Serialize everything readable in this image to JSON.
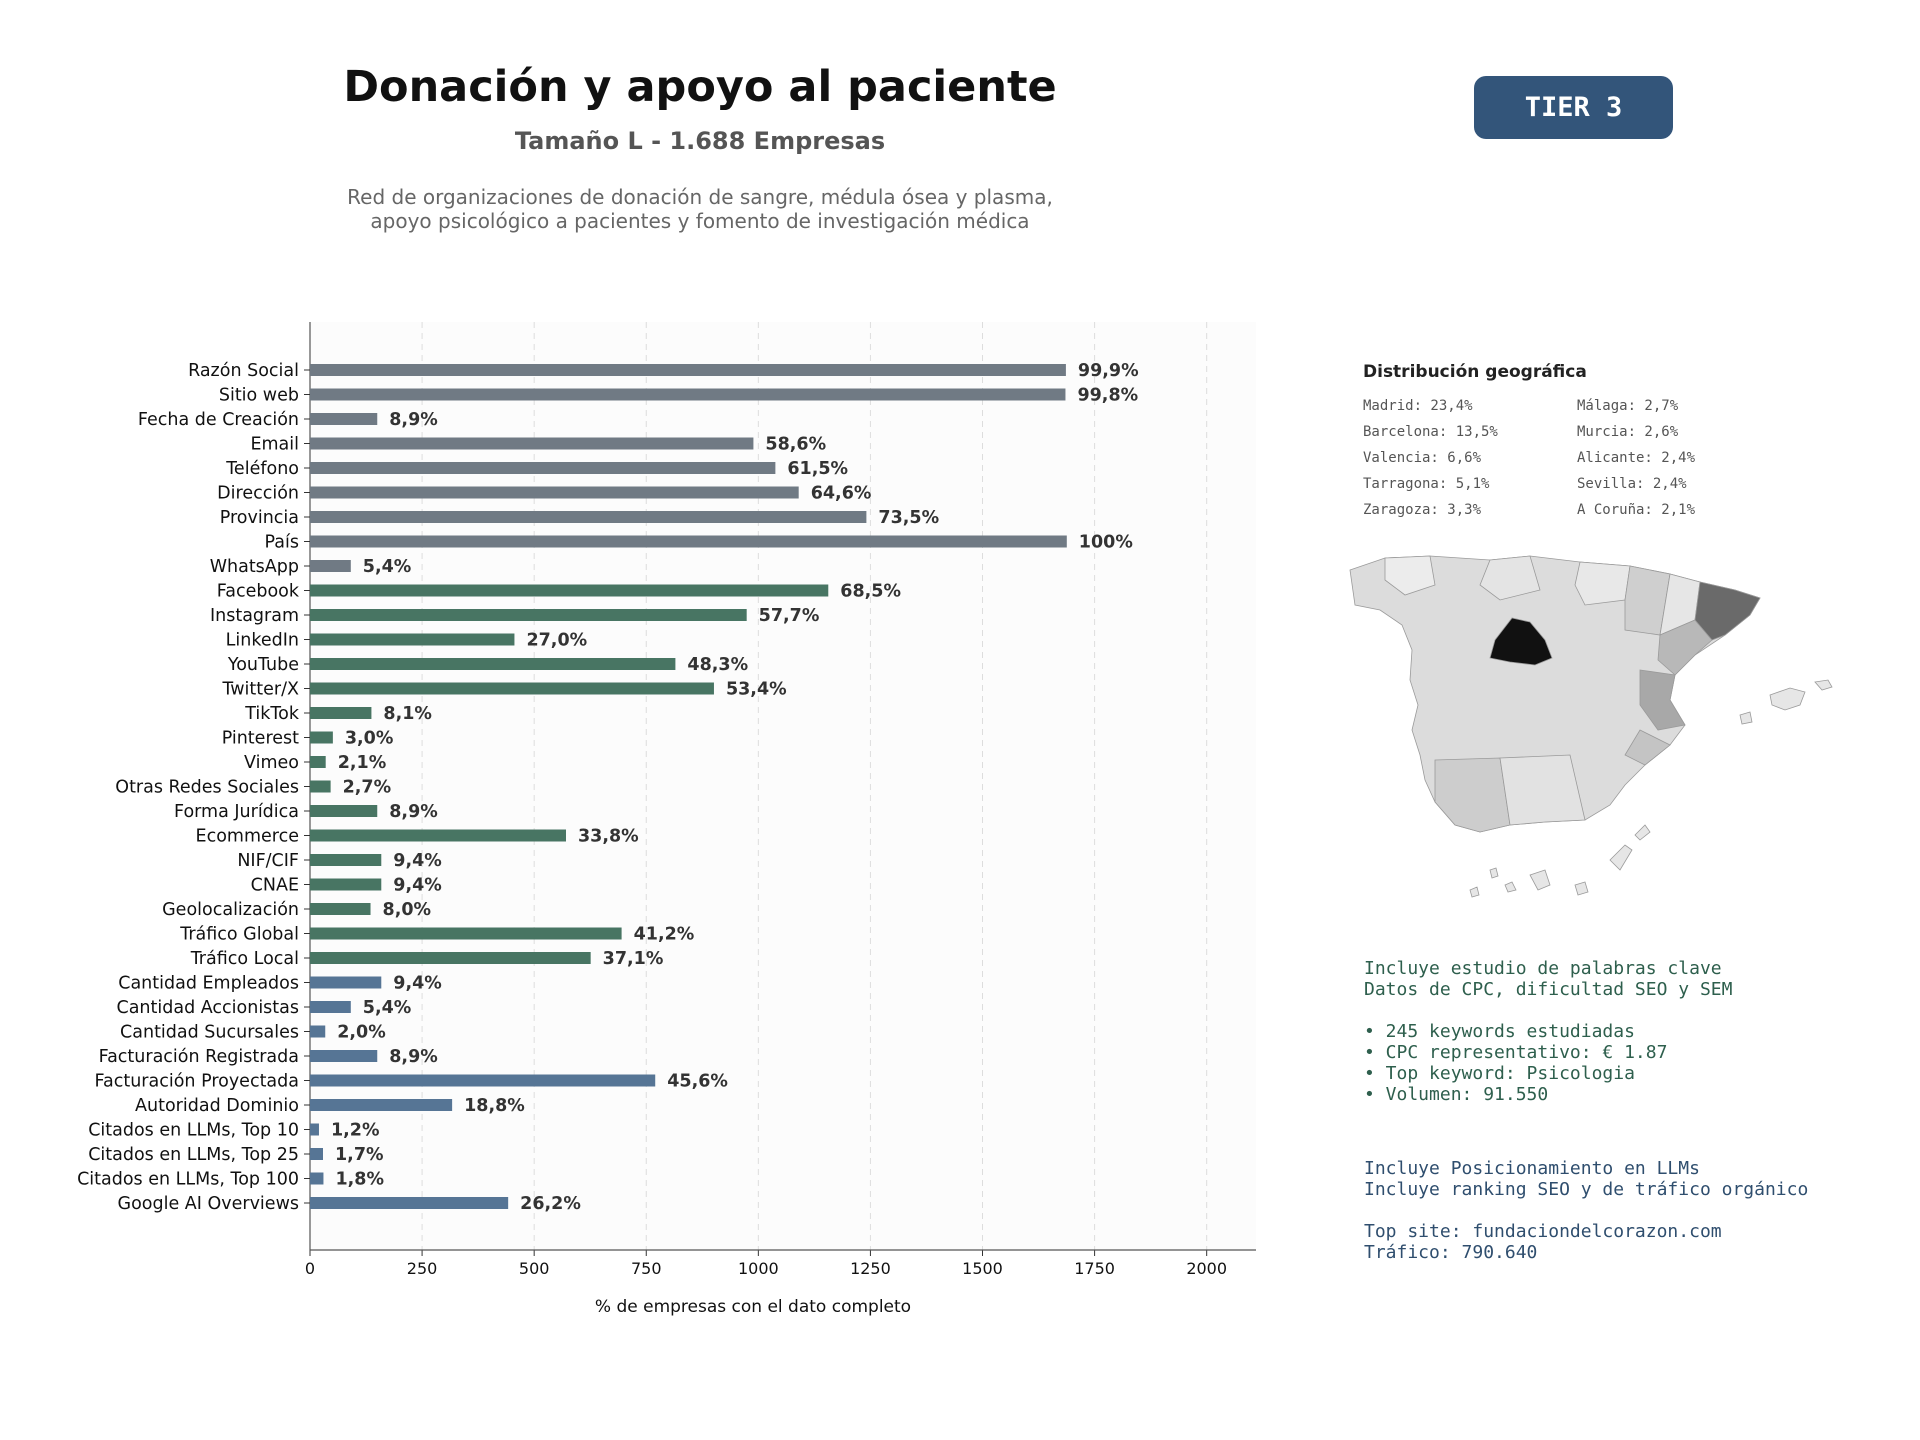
{
  "header": {
    "title": "Donación y apoyo al paciente",
    "subtitle": "Tamaño L - 1.688 Empresas",
    "description_lines": [
      "Red de organizaciones de donación de sangre, médula ósea y plasma,",
      "apoyo psicológico a pacientes y fomento de investigación médica"
    ],
    "tier_badge": "TIER 3"
  },
  "chart_data": {
    "type": "bar",
    "orientation": "horizontal",
    "xlabel": "% de empresas con el dato completo",
    "xlim": [
      0,
      2110
    ],
    "xticks": [
      0,
      250,
      500,
      750,
      1000,
      1250,
      1500,
      1750,
      2000
    ],
    "grid": "vertical-dashed",
    "total": 1688,
    "colors": {
      "contact": "#707a84",
      "social": "#487563",
      "business": "#567595"
    },
    "categories": [
      "Razón Social",
      "Sitio web",
      "Fecha de Creación",
      "Email",
      "Teléfono",
      "Dirección",
      "Provincia",
      "País",
      "WhatsApp",
      "Facebook",
      "Instagram",
      "LinkedIn",
      "YouTube",
      "Twitter/X",
      "TikTok",
      "Pinterest",
      "Vimeo",
      "Otras Redes Sociales",
      "Forma Jurídica",
      "Ecommerce",
      "NIF/CIF",
      "CNAE",
      "Geolocalización",
      "Tráfico Global",
      "Tráfico Local",
      "Cantidad Empleados",
      "Cantidad Accionistas",
      "Cantidad Sucursales",
      "Facturación Registrada",
      "Facturación Proyectada",
      "Autoridad Dominio",
      "Citados en LLMs, Top 10",
      "Citados en LLMs, Top 25",
      "Citados en LLMs, Top 100",
      "Google AI Overviews"
    ],
    "values": [
      1686,
      1685,
      150,
      989,
      1038,
      1090,
      1241,
      1688,
      91,
      1156,
      974,
      456,
      815,
      901,
      137,
      51,
      35,
      46,
      150,
      571,
      159,
      159,
      135,
      695,
      626,
      159,
      91,
      34,
      150,
      770,
      317,
      20,
      29,
      30,
      442
    ],
    "labels": [
      "99,9%",
      "99,8%",
      "8,9%",
      "58,6%",
      "61,5%",
      "64,6%",
      "73,5%",
      "100%",
      "5,4%",
      "68,5%",
      "57,7%",
      "27,0%",
      "48,3%",
      "53,4%",
      "8,1%",
      "3,0%",
      "2,1%",
      "2,7%",
      "8,9%",
      "33,8%",
      "9,4%",
      "9,4%",
      "8,0%",
      "41,2%",
      "37,1%",
      "9,4%",
      "5,4%",
      "2,0%",
      "8,9%",
      "45,6%",
      "18,8%",
      "1,2%",
      "1,7%",
      "1,8%",
      "26,2%"
    ],
    "groups": [
      "contact",
      "contact",
      "contact",
      "contact",
      "contact",
      "contact",
      "contact",
      "contact",
      "contact",
      "social",
      "social",
      "social",
      "social",
      "social",
      "social",
      "social",
      "social",
      "social",
      "social",
      "social",
      "social",
      "social",
      "social",
      "social",
      "social",
      "business",
      "business",
      "business",
      "business",
      "business",
      "business",
      "business",
      "business",
      "business",
      "business"
    ]
  },
  "geo": {
    "title": "Distribución geográfica",
    "col1": [
      "Madrid: 23,4%",
      "Barcelona: 13,5%",
      "Valencia: 6,6%",
      "Tarragona: 5,1%",
      "Zaragoza: 3,3%"
    ],
    "col2": [
      "Málaga: 2,7%",
      "Murcia: 2,6%",
      "Alicante: 2,4%",
      "Sevilla: 2,4%",
      "A Coruña: 2,1%"
    ],
    "map_colors": {
      "madrid": "#111111",
      "barcelona": "#6a6a6a",
      "valencia": "#a8a8a8",
      "tarragona": "#b8b8b8",
      "default": "#dcdcdc",
      "light": "#ececec"
    }
  },
  "keywords": {
    "line1": "Incluye estudio de palabras clave",
    "line2": "Datos de CPC, dificultad SEO y SEM",
    "bullets": [
      "• 245 keywords estudiadas",
      "• CPC representativo: € 1.87",
      "• Top keyword: Psicologia",
      "• Volumen: 91.550"
    ]
  },
  "llm": {
    "line1": "Incluye Posicionamiento en LLMs",
    "line2": "Incluye ranking SEO y de tráfico orgánico",
    "top_site": "Top site: fundaciondelcorazon.com",
    "traffic": "Tráfico: 790.640"
  }
}
